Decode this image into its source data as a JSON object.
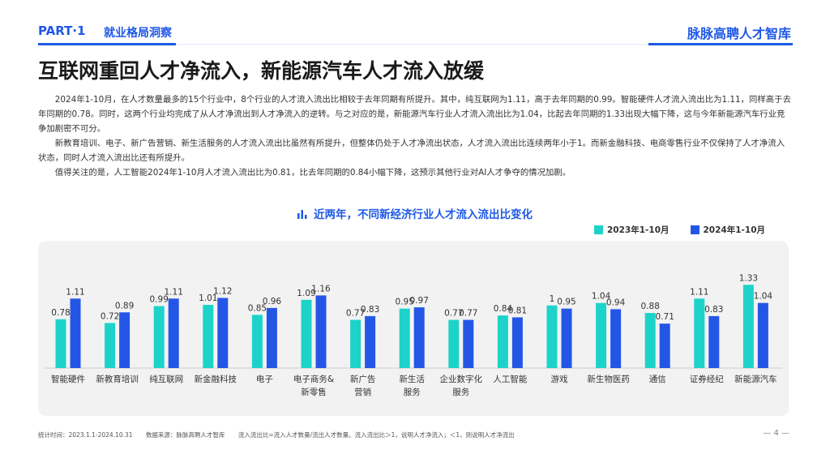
{
  "header": {
    "part": "PART·1",
    "section": "就业格局洞察",
    "brand": "脉脉高聘人才智库"
  },
  "title": "互联网重回人才净流入，新能源汽车人才流入放缓",
  "paragraphs": [
    "2024年1-10月，在人才数量最多的15个行业中，8个行业的人才流入流出比相较于去年同期有所提升。其中，纯互联网为1.11，高于去年同期的0.99。智能硬件人才流入流出比为1.11，同样高于去年同期的0.78。同时，这两个行业均完成了从人才净流出到人才净流入的逆转。与之对应的是，新能源汽车行业人才流入流出比为1.04，比起去年同期的1.33出现大幅下降，这与今年新能源汽车行业竞争加剧密不可分。",
    "新教育培训、电子、新广告营销、新生活服务的人才流入流出比虽然有所提升，但整体仍处于人才净流出状态，人才流入流出比连续两年小于1。而新金融科技、电商零售行业不仅保持了人才净流入状态，同时人才流入流出比还有所提升。",
    "值得关注的是，人工智能2024年1-10月人才流入流出比为0.81，比去年同期的0.84小幅下降，这预示其他行业对AI人才争夺的情况加剧。"
  ],
  "chart_data": {
    "type": "bar",
    "title": "近两年，不同新经济行业人才流入流出比变化",
    "categories": [
      "智能硬件",
      "新教育培训",
      "纯互联网",
      "新金融科技",
      "电子",
      "电子商务&\n新零售",
      "新广告\n营销",
      "新生活\n服务",
      "企业数字化\n服务",
      "人工智能",
      "游戏",
      "新生物医药",
      "通信",
      "证券经纪",
      "新能源汽车"
    ],
    "series": [
      {
        "name": "2023年1-10月",
        "color": "#1dd3c9",
        "values": [
          0.78,
          0.72,
          0.99,
          1.01,
          0.85,
          1.09,
          0.77,
          0.95,
          0.77,
          0.84,
          1,
          1.04,
          0.88,
          1.11,
          1.33
        ]
      },
      {
        "name": "2024年1-10月",
        "color": "#2456e6",
        "values": [
          1.11,
          0.89,
          1.11,
          1.12,
          0.96,
          1.16,
          0.83,
          0.97,
          0.77,
          0.81,
          0.95,
          0.94,
          0.71,
          0.83,
          1.04
        ]
      }
    ],
    "ylim": [
      0,
      1.45
    ],
    "legend_position": "top-right",
    "grid": false
  },
  "footer": {
    "time": "统计时间：2023.1.1-2024.10.31",
    "source": "数据来源：脉脉高聘人才智库",
    "note": "流入流出比=流入人才数量/流出人才数量。流入流出比＞1，说明人才净流入；＜1，则说明人才净流出"
  },
  "page_number": "— 4 —"
}
